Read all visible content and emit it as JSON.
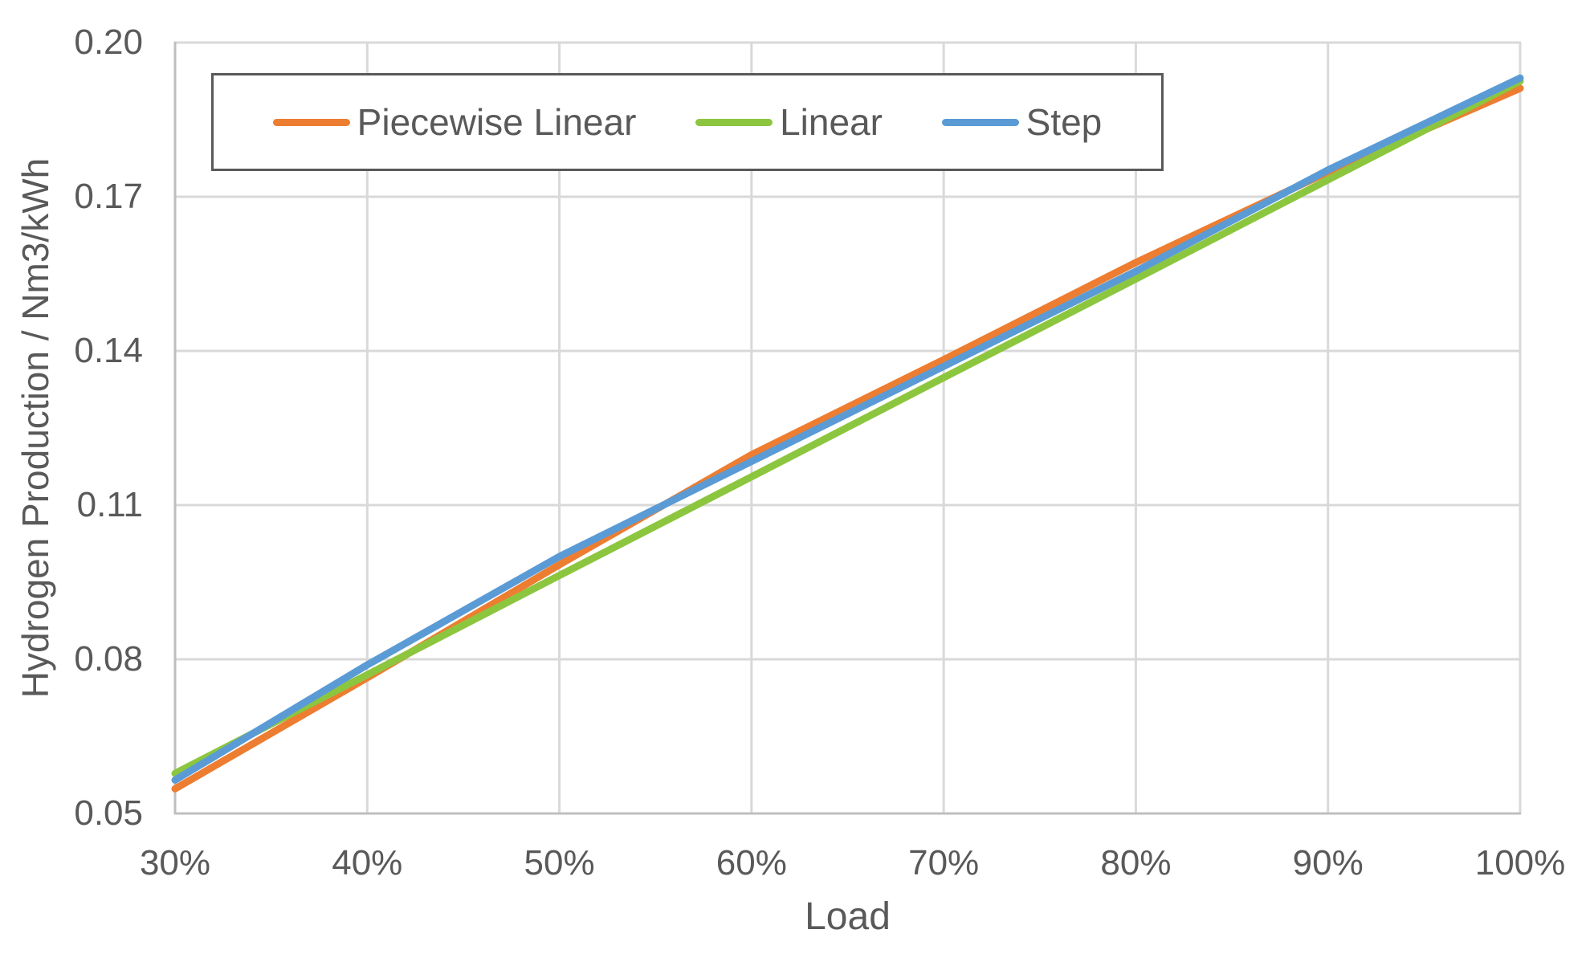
{
  "chart_data": {
    "type": "line",
    "title": "",
    "xlabel": "Load",
    "ylabel": "Hydrogen Production / Nm3/kWh",
    "xlim": [
      30,
      100
    ],
    "ylim": [
      0.05,
      0.2
    ],
    "x": [
      30,
      40,
      50,
      60,
      70,
      80,
      90,
      100
    ],
    "x_tick_labels": [
      "30%",
      "40%",
      "50%",
      "60%",
      "70%",
      "80%",
      "90%",
      "100%"
    ],
    "y_tick_labels": [
      "0.05",
      "0.08",
      "0.11",
      "0.14",
      "0.17",
      "0.20"
    ],
    "grid": true,
    "legend_position": "top-inside-horizontal",
    "series": [
      {
        "name": "Piecewise Linear",
        "color": "#ED7D31",
        "values": [
          0.0548,
          0.0764,
          0.0984,
          0.1198,
          0.1383,
          0.1572,
          0.1748,
          0.1911
        ]
      },
      {
        "name": "Linear",
        "color": "#8CC63F",
        "values": [
          0.0578,
          0.077,
          0.0963,
          0.1155,
          0.1348,
          0.154,
          0.1733,
          0.1925
        ]
      },
      {
        "name": "Step",
        "color": "#5B9BD5",
        "values": [
          0.0565,
          0.0789,
          0.1,
          0.1185,
          0.137,
          0.1555,
          0.1752,
          0.1931
        ]
      }
    ],
    "colors": {
      "gridline": "#D9D9D9",
      "axis_line": "#BFBFBF",
      "text": "#595959",
      "legend_border": "#595959",
      "background": "#FFFFFF"
    }
  }
}
